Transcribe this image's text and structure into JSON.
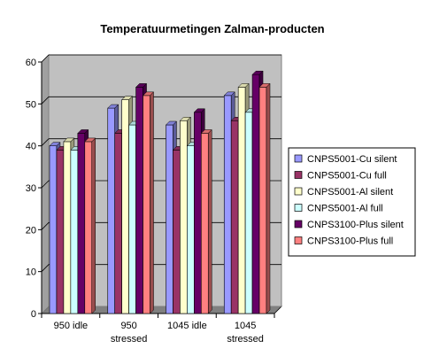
{
  "chart_data": {
    "type": "bar",
    "title": "Temperatuurmetingen Zalman-producten",
    "categories": [
      [
        "950 idle"
      ],
      [
        "950",
        "stressed"
      ],
      [
        "1045 idle"
      ],
      [
        "1045",
        "stressed"
      ]
    ],
    "ylim": [
      0,
      60
    ],
    "yticks": [
      0,
      10,
      20,
      30,
      40,
      50,
      60
    ],
    "grid": true,
    "legend_position": "right",
    "series": [
      {
        "name": "CNPS5001-Cu silent",
        "color": "#9999ff",
        "values": [
          40,
          49,
          45,
          52
        ]
      },
      {
        "name": "CNPS5001-Cu full",
        "color": "#993366",
        "values": [
          39,
          43,
          39,
          46
        ]
      },
      {
        "name": "CNPS5001-Al silent",
        "color": "#ffffcc",
        "values": [
          41,
          51,
          46,
          54
        ]
      },
      {
        "name": "CNPS5001-Al full",
        "color": "#ccffff",
        "values": [
          39,
          45,
          40,
          48
        ]
      },
      {
        "name": "CNPS3100-Plus silent",
        "color": "#660066",
        "values": [
          43,
          54,
          48,
          57
        ]
      },
      {
        "name": "CNPS3100-Plus full",
        "color": "#ff8080",
        "values": [
          41,
          52,
          43,
          54
        ]
      }
    ]
  }
}
